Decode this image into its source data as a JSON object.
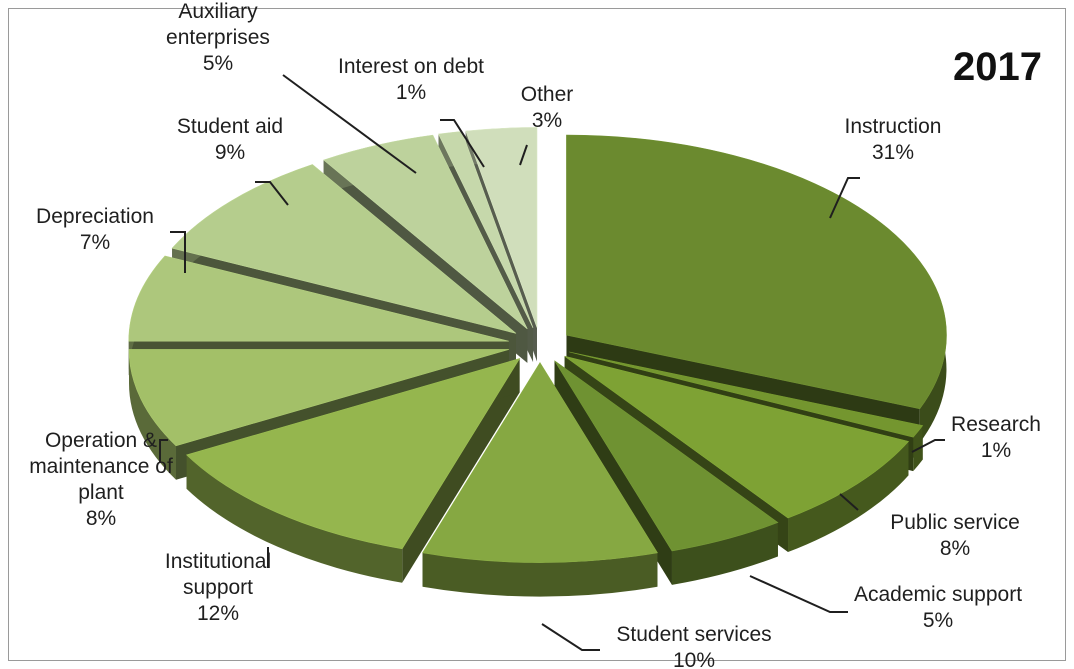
{
  "chart_data": {
    "type": "pie",
    "title": "2017",
    "style": "3d-exploded",
    "series": [
      {
        "name": "Instruction",
        "label": [
          "Instruction"
        ],
        "pct_label": "31%",
        "value": 31,
        "color": "#6b8a2f"
      },
      {
        "name": "Research",
        "label": [
          "Research"
        ],
        "pct_label": "1%",
        "value": 1,
        "color": "#74962f"
      },
      {
        "name": "Public service",
        "label": [
          "Public service"
        ],
        "pct_label": "8%",
        "value": 8,
        "color": "#7ea234"
      },
      {
        "name": "Academic support",
        "label": [
          "Academic support"
        ],
        "pct_label": "5%",
        "value": 5,
        "color": "#6f9232"
      },
      {
        "name": "Student services",
        "label": [
          "Student services"
        ],
        "pct_label": "10%",
        "value": 10,
        "color": "#86a842"
      },
      {
        "name": "Institutional support",
        "label": [
          "Institutional",
          "support"
        ],
        "pct_label": "12%",
        "value": 12,
        "color": "#95b64e"
      },
      {
        "name": "Operation & maintenance of plant",
        "label": [
          "Operation &",
          "maintenance of",
          "plant"
        ],
        "pct_label": "8%",
        "value": 8,
        "color": "#a3c068"
      },
      {
        "name": "Depreciation",
        "label": [
          "Depreciation"
        ],
        "pct_label": "7%",
        "value": 7,
        "color": "#adc77c"
      },
      {
        "name": "Student aid",
        "label": [
          "Student aid"
        ],
        "pct_label": "9%",
        "value": 9,
        "color": "#b5cd8d"
      },
      {
        "name": "Auxiliary enterprises",
        "label": [
          "Auxiliary",
          "enterprises"
        ],
        "pct_label": "5%",
        "value": 5,
        "color": "#bdd29c"
      },
      {
        "name": "Interest on debt",
        "label": [
          "Interest on debt"
        ],
        "pct_label": "1%",
        "value": 1,
        "color": "#c6d8ab"
      },
      {
        "name": "Other",
        "label": [
          "Other"
        ],
        "pct_label": "3%",
        "value": 3,
        "color": "#d0debb"
      }
    ]
  }
}
